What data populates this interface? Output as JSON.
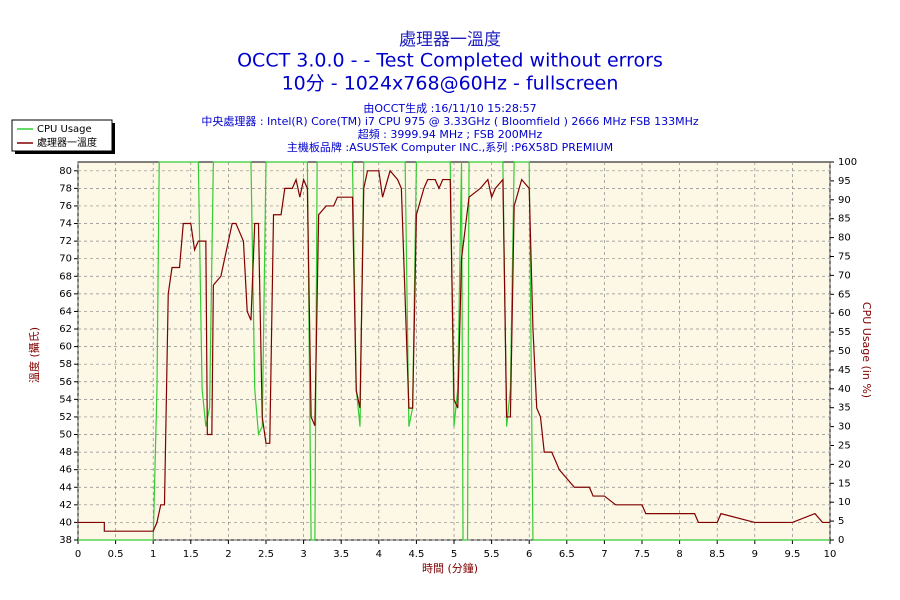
{
  "chart_data": {
    "type": "line",
    "title": "處理器一溫度",
    "subtitles": [
      "OCCT 3.0.0 -  - Test Completed without errors",
      "10分 - 1024x768@60Hz - fullscreen"
    ],
    "info": [
      "由OCCT生成 :16/11/10 15:28:57",
      "中央處理器 : Intel(R) Core(TM) i7 CPU 975 @ 3.33GHz ( Bloomfield ) 2666 MHz FSB 133MHz",
      "超頻 : 3999.94 MHz ; FSB 200MHz",
      "主機板品牌 :ASUSTeK Computer INC.,系列 :P6X58D PREMIUM"
    ],
    "x_label": "時間 (分鐘)",
    "y_label": "溫度 (攝氏)",
    "y2_label": "CPU Usage (in %)",
    "xlim": [
      0,
      10
    ],
    "xticks": [
      0,
      0.5,
      1,
      1.5,
      2,
      2.5,
      3,
      3.5,
      4,
      4.5,
      5,
      5.5,
      6,
      6.5,
      7,
      7.5,
      8,
      8.5,
      9,
      9.5,
      10
    ],
    "ylim": [
      38,
      81
    ],
    "yticks": [
      38,
      40,
      42,
      44,
      46,
      48,
      50,
      52,
      54,
      56,
      58,
      60,
      62,
      64,
      66,
      68,
      70,
      72,
      74,
      76,
      78,
      80
    ],
    "y2lim": [
      0,
      100
    ],
    "y2ticks": [
      0,
      5,
      10,
      15,
      20,
      25,
      30,
      35,
      40,
      45,
      50,
      55,
      60,
      65,
      70,
      75,
      80,
      85,
      90,
      95,
      100
    ],
    "grid": true,
    "legend": "upper-left",
    "series": [
      {
        "name": "CPU Usage",
        "color": "#33cc33",
        "axis": "y2",
        "x": [
          0,
          1.0,
          1.05,
          1.08,
          1.6,
          1.65,
          1.7,
          1.75,
          1.8,
          2.3,
          2.35,
          2.4,
          2.45,
          2.5,
          3.05,
          3.1,
          3.15,
          3.18,
          3.65,
          3.7,
          3.75,
          3.8,
          4.35,
          4.4,
          4.45,
          4.5,
          4.95,
          5.0,
          5.05,
          5.1,
          5.12,
          5.18,
          5.2,
          5.65,
          5.7,
          5.75,
          5.8,
          6.0,
          6.05,
          10
        ],
        "values": [
          0,
          0,
          40,
          100,
          100,
          40,
          30,
          35,
          100,
          100,
          40,
          28,
          30,
          100,
          100,
          0,
          0,
          100,
          100,
          40,
          30,
          100,
          100,
          30,
          35,
          100,
          100,
          30,
          40,
          100,
          0,
          0,
          100,
          100,
          30,
          40,
          100,
          100,
          0,
          0
        ]
      },
      {
        "name": "處理器一溫度",
        "color": "#800000",
        "x": [
          0,
          0.35,
          0.35,
          1.0,
          1.05,
          1.1,
          1.15,
          1.2,
          1.25,
          1.35,
          1.4,
          1.5,
          1.55,
          1.6,
          1.7,
          1.72,
          1.78,
          1.8,
          1.9,
          2.0,
          2.05,
          2.1,
          2.15,
          2.2,
          2.25,
          2.3,
          2.35,
          2.4,
          2.45,
          2.5,
          2.55,
          2.6,
          2.7,
          2.75,
          2.85,
          2.9,
          2.95,
          3.0,
          3.05,
          3.1,
          3.15,
          3.2,
          3.3,
          3.4,
          3.45,
          3.65,
          3.7,
          3.75,
          3.8,
          3.85,
          4.0,
          4.05,
          4.15,
          4.25,
          4.3,
          4.4,
          4.45,
          4.5,
          4.6,
          4.65,
          4.75,
          4.8,
          4.85,
          4.95,
          5.0,
          5.05,
          5.1,
          5.2,
          5.35,
          5.45,
          5.5,
          5.55,
          5.65,
          5.7,
          5.75,
          5.8,
          5.9,
          6.0,
          6.05,
          6.1,
          6.15,
          6.2,
          6.3,
          6.4,
          6.6,
          6.8,
          6.85,
          7.0,
          7.15,
          7.5,
          7.55,
          8.0,
          8.2,
          8.25,
          8.5,
          8.55,
          9.0,
          9.5,
          9.8,
          9.9,
          10
        ],
        "values": [
          40,
          40,
          39,
          39,
          40,
          42,
          42,
          66,
          69,
          69,
          74,
          74,
          71,
          72,
          72,
          50,
          50,
          67,
          68,
          72,
          74,
          74,
          73,
          72,
          64,
          63,
          74,
          74,
          52,
          49,
          49,
          75,
          75,
          78,
          78,
          79,
          77,
          79,
          78,
          52,
          51,
          75,
          76,
          76,
          77,
          77,
          55,
          53,
          78,
          80,
          80,
          77,
          80,
          79,
          78,
          53,
          53,
          75,
          78,
          79,
          79,
          78,
          79,
          79,
          54,
          53,
          70,
          77,
          78,
          79,
          77,
          78,
          79,
          52,
          52,
          76,
          79,
          78,
          62,
          53,
          52,
          48,
          48,
          46,
          44,
          44,
          43,
          43,
          42,
          42,
          41,
          41,
          41,
          40,
          40,
          41,
          40,
          40,
          41,
          40,
          40
        ]
      }
    ]
  }
}
